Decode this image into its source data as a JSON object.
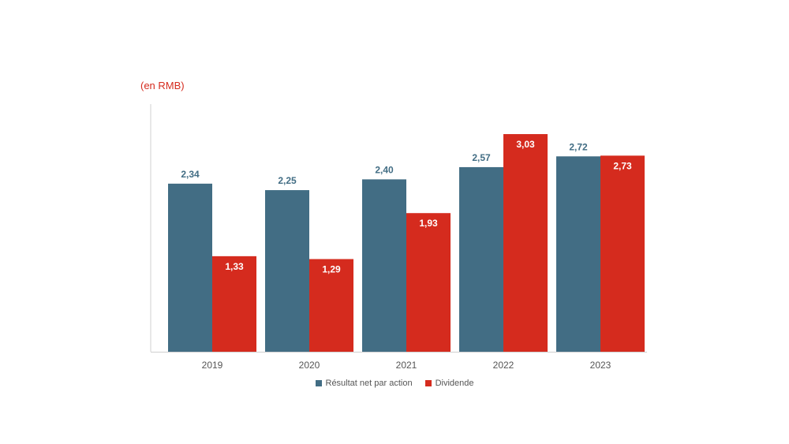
{
  "chart_data": {
    "type": "bar",
    "unit_label": "(en RMB)",
    "categories": [
      "2019",
      "2020",
      "2021",
      "2022",
      "2023"
    ],
    "series": [
      {
        "name": "Résultat net par action",
        "color": "#426d84",
        "values": [
          2.34,
          2.25,
          2.4,
          2.57,
          2.72
        ],
        "labels": [
          "2,34",
          "2,25",
          "2,40",
          "2,57",
          "2,72"
        ]
      },
      {
        "name": "Dividende",
        "color": "#d52b1e",
        "values": [
          1.33,
          1.29,
          1.93,
          3.03,
          2.73
        ],
        "labels": [
          "1,33",
          "1,29",
          "1,93",
          "3,03",
          "2,73"
        ]
      }
    ],
    "ylim": [
      0,
      3.25
    ],
    "grid": false,
    "legend_position": "bottom"
  }
}
